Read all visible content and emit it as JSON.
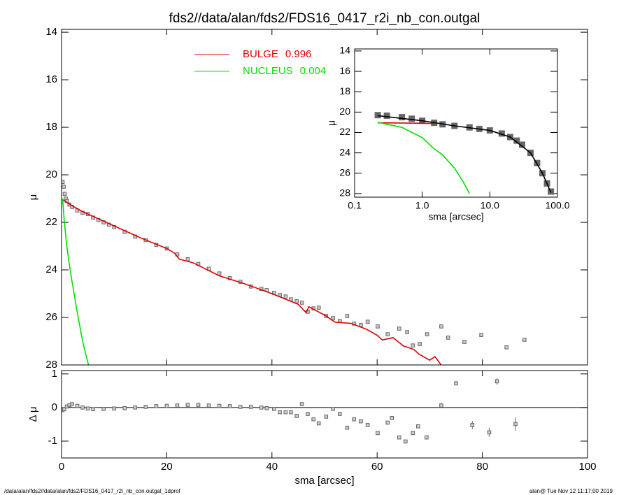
{
  "footer": {
    "left": "/data/alan/fds2//data/alan/fds2/FDS16_0417_r2i_nb_con.outgal_1dprof",
    "right": "alan@  Tue Nov 12 11:17:00 2019"
  },
  "chart_data": [
    {
      "type": "scatter",
      "title": "fds2//data/alan/fds2/FDS16_0417_r2i_nb_con.outgal",
      "ylabel": "μ",
      "xlim": [
        0,
        100
      ],
      "xticks": [
        0,
        20,
        40,
        60,
        80,
        100
      ],
      "xtick_labels": false,
      "ylim": [
        13.88,
        28
      ],
      "y_inverted": true,
      "yticks": [
        14,
        16,
        18,
        20,
        22,
        24,
        26,
        28
      ],
      "series": [
        {
          "mode": "markers",
          "color": "#666666",
          "x": [
            0.2,
            0.4,
            0.6,
            0.8,
            1,
            1.5,
            2,
            3,
            4,
            5,
            6,
            7,
            8,
            9,
            10,
            12,
            14,
            16,
            18,
            20,
            22,
            24,
            26,
            28,
            30,
            32,
            34,
            36,
            38,
            39,
            40.4,
            41.5,
            42.6,
            43.6,
            44.7,
            45.7,
            46.8,
            47.9,
            48.9,
            50.3,
            51.6,
            52.9,
            54.3,
            55.6,
            56.9,
            58.2,
            60.1,
            62.0,
            64.2,
            65.7,
            66.8,
            68.1,
            69.5,
            72.2,
            73.5,
            76.6,
            79.8,
            84.6,
            88.0
          ],
          "values": [
            20.3,
            20.5,
            20.8,
            21.0,
            21.1,
            21.25,
            21.35,
            21.5,
            21.6,
            21.65,
            21.8,
            21.9,
            22.0,
            22.1,
            22.2,
            22.4,
            22.6,
            22.75,
            22.95,
            23.1,
            23.35,
            23.55,
            23.75,
            23.95,
            24.15,
            24.35,
            24.5,
            24.7,
            24.8,
            24.85,
            24.97,
            25.06,
            25.12,
            25.24,
            25.32,
            25.38,
            25.76,
            25.62,
            25.59,
            25.94,
            26.03,
            26.15,
            25.94,
            26.26,
            26.32,
            26.18,
            26.38,
            26.71,
            26.47,
            26.62,
            27.18,
            27.12,
            26.71,
            26.38,
            26.85,
            27.03,
            26.74,
            27.26,
            26.94
          ]
        },
        {
          "mode": "line",
          "name": "BULGE",
          "fraction": 0.996,
          "color": "#e00000",
          "x": [
            0.2,
            2,
            4,
            5,
            10,
            15,
            20,
            21.5,
            22.4,
            25,
            30,
            35,
            40,
            45,
            46.5,
            47,
            50,
            52,
            55,
            58,
            60,
            61,
            63,
            65,
            67,
            68,
            70,
            71,
            72,
            73
          ],
          "values": [
            21.05,
            21.3,
            21.55,
            21.65,
            22.15,
            22.65,
            23.1,
            23.3,
            23.55,
            23.7,
            24.25,
            24.6,
            25.0,
            25.45,
            25.8,
            25.55,
            25.9,
            26.2,
            26.25,
            26.5,
            26.75,
            26.95,
            26.85,
            27.2,
            27.35,
            27.55,
            27.8,
            27.65,
            27.95,
            28.3
          ]
        },
        {
          "mode": "line",
          "name": "NUCLEUS",
          "fraction": 0.004,
          "color": "#00e000",
          "x": [
            0.2,
            0.5,
            1,
            1.5,
            2,
            3,
            4,
            5,
            5.3
          ],
          "values": [
            21.0,
            21.9,
            23.0,
            23.8,
            24.5,
            25.8,
            27.0,
            27.9,
            28.1
          ]
        }
      ]
    },
    {
      "type": "scatter",
      "xlabel": "sma [arcsec]",
      "ylabel": "Δ μ",
      "xlim": [
        0,
        100
      ],
      "xticks": [
        0,
        20,
        40,
        60,
        80,
        100
      ],
      "xtick_labels": true,
      "ylim": [
        -1.5,
        1.1
      ],
      "yticks": [
        -1,
        0,
        1
      ],
      "zero_line": true,
      "series": [
        {
          "mode": "markers",
          "color": "#666666",
          "x": [
            0.2,
            0.5,
            1,
            1.5,
            2,
            3,
            4,
            5,
            6,
            8,
            10,
            12,
            14,
            16,
            18,
            20,
            22,
            24,
            26,
            28,
            30,
            32,
            34,
            36,
            38,
            39,
            40.4,
            41.5,
            42.6,
            43.6,
            44.7,
            45.7,
            46.8,
            47.9,
            48.9,
            50.3,
            51.6,
            52.9,
            54.3,
            55.6,
            56.9,
            58.2,
            60.1,
            62.0,
            62.8,
            64.2,
            65.4,
            66.8,
            67.8,
            69.4,
            72.2,
            75.0,
            78.1,
            81.3,
            82.8,
            86.3
          ],
          "values": [
            -0.08,
            -0.05,
            0.03,
            0.07,
            0.1,
            0.05,
            0.0,
            -0.03,
            -0.05,
            -0.04,
            -0.03,
            -0.02,
            0.0,
            0.02,
            0.04,
            0.05,
            0.06,
            0.08,
            0.08,
            0.06,
            0.05,
            0.04,
            0.02,
            0.02,
            0.0,
            -0.02,
            -0.04,
            -0.14,
            -0.14,
            -0.14,
            -0.25,
            0.1,
            -0.19,
            -0.35,
            -0.47,
            -0.27,
            -0.04,
            -0.19,
            -0.6,
            -0.35,
            -0.41,
            -0.52,
            -0.76,
            -0.45,
            -0.31,
            -0.89,
            -1.01,
            -0.76,
            -0.56,
            -0.89,
            0.06,
            0.72,
            -0.52,
            -0.74,
            0.78,
            -0.49
          ],
          "errors": [
            0.01,
            0.01,
            0.01,
            0.01,
            0.01,
            0.01,
            0.01,
            0.01,
            0.01,
            0.01,
            0.01,
            0.01,
            0.01,
            0.01,
            0.01,
            0.01,
            0.01,
            0.01,
            0.01,
            0.01,
            0.01,
            0.01,
            0.01,
            0.01,
            0.01,
            0.01,
            0.02,
            0.02,
            0.02,
            0.02,
            0.02,
            0.02,
            0.02,
            0.02,
            0.03,
            0.03,
            0.03,
            0.03,
            0.03,
            0.03,
            0.03,
            0.03,
            0.03,
            0.03,
            0.03,
            0.04,
            0.04,
            0.05,
            0.05,
            0.05,
            0.08,
            0.06,
            0.12,
            0.14,
            0.1,
            0.2
          ]
        }
      ]
    },
    {
      "type": "scatter",
      "xlabel": "sma [arcsec]",
      "ylabel": "μ",
      "xlog": true,
      "xlim": [
        0.1,
        100
      ],
      "xticks": [
        0.1,
        {
          "value": 1,
          "label": "1.0"
        },
        {
          "value": 10,
          "label": "10.0"
        },
        {
          "value": 100,
          "label": "100.0"
        }
      ],
      "xtick_labels": true,
      "ylim": [
        13.8,
        28.35
      ],
      "y_inverted": true,
      "yticks": [
        14,
        16,
        18,
        20,
        22,
        24,
        26,
        28
      ],
      "series": [
        {
          "mode": "markers",
          "color": "#666666",
          "x": [
            0.22,
            0.3,
            0.5,
            0.7,
            1,
            1.5,
            2,
            3,
            5,
            7,
            10,
            15,
            20,
            25,
            30,
            40,
            50,
            60,
            70,
            80
          ],
          "values": [
            20.3,
            20.35,
            20.5,
            20.65,
            20.85,
            21.05,
            21.2,
            21.35,
            21.5,
            21.65,
            21.8,
            22.1,
            22.45,
            22.8,
            23.2,
            24.0,
            25.0,
            26.0,
            27.0,
            27.8
          ]
        },
        {
          "mode": "line",
          "color": "#000000",
          "x": [
            0.22,
            1,
            3,
            10,
            20,
            40,
            60,
            80
          ],
          "values": [
            20.35,
            20.85,
            21.35,
            21.8,
            22.45,
            24.0,
            26.0,
            27.9
          ]
        },
        {
          "mode": "line",
          "color": "#e00000",
          "x": [
            0.22,
            0.5,
            1,
            1.5
          ],
          "values": [
            21.05,
            21.07,
            21.1,
            21.12
          ]
        },
        {
          "mode": "line",
          "color": "#00e000",
          "x": [
            0.22,
            0.5,
            1,
            1.5,
            2,
            3,
            4,
            5
          ],
          "values": [
            21.0,
            21.5,
            22.5,
            23.6,
            24.2,
            25.5,
            26.8,
            28.0
          ]
        }
      ]
    }
  ]
}
